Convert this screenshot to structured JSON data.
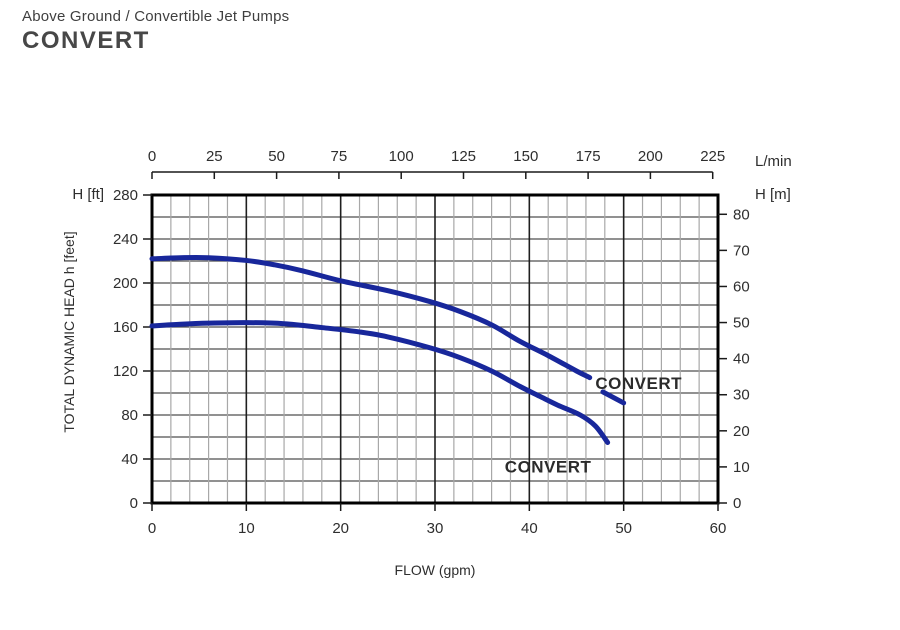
{
  "header": {
    "category": "Above Ground / Convertible Jet Pumps",
    "model": "CONVERT"
  },
  "chart_data": {
    "type": "line",
    "title": "",
    "x_axis_bottom": {
      "label": "FLOW (gpm)",
      "ticks": [
        0,
        10,
        20,
        30,
        40,
        50,
        60
      ],
      "range": [
        0,
        60
      ],
      "minor_step_gpm": 2,
      "major_step_gpm": 10
    },
    "x_axis_top": {
      "label": "L/min",
      "ticks": [
        0,
        25,
        50,
        75,
        100,
        125,
        150,
        175,
        200,
        225
      ],
      "range_lmin": [
        0,
        225
      ]
    },
    "y_axis_left": {
      "unit_label": "H [ft]",
      "axis_title": "TOTAL DYNAMIC HEAD h [feet]",
      "ticks": [
        0,
        40,
        80,
        120,
        160,
        200,
        240,
        280
      ],
      "range": [
        0,
        280
      ],
      "grid_step_ft": 20
    },
    "y_axis_right": {
      "unit_label": "H [m]",
      "ticks": [
        0,
        10,
        20,
        30,
        40,
        50,
        60,
        70,
        80
      ]
    },
    "grid": {
      "on": true,
      "minor_vertical_color": "#a8a8a8",
      "major_vertical_color": "#1f1f1f",
      "horizontal_color": "#4f4f4f",
      "border_color": "#000000",
      "tick_color": "#1a1a1a"
    },
    "text_color": "#2e2e2e",
    "legend_position": "labels-on-plot",
    "series": [
      {
        "name": "CONVERT high-pressure curve",
        "label": {
          "text": "CONVERT",
          "x_gpm": 47.0,
          "y_ft": 109
        },
        "color": "#18279b",
        "segments_gpm_ft": [
          [
            [
              0,
              222
            ],
            [
              3,
              223
            ],
            [
              6,
              223
            ],
            [
              10,
              220.5
            ],
            [
              13,
              216.5
            ],
            [
              16,
              211
            ],
            [
              20,
              202
            ],
            [
              25,
              193
            ],
            [
              29.5,
              183
            ],
            [
              32.7,
              174
            ],
            [
              36,
              162
            ],
            [
              39,
              147
            ],
            [
              42,
              134
            ],
            [
              45,
              120
            ],
            [
              46.4,
              114
            ]
          ],
          [
            [
              47.8,
              101
            ],
            [
              50,
              91
            ]
          ]
        ]
      },
      {
        "name": "CONVERT high-flow curve",
        "label": {
          "text": "CONVERT",
          "x_gpm": 37.4,
          "y_ft": 33
        },
        "color": "#18279b",
        "segments_gpm_ft": [
          [
            [
              0,
              161
            ],
            [
              3,
              162.5
            ],
            [
              6,
              163.5
            ],
            [
              10,
              164
            ],
            [
              14,
              163
            ],
            [
              18,
              159.5
            ],
            [
              22,
              155.5
            ],
            [
              25,
              151
            ],
            [
              29.5,
              141
            ],
            [
              32.7,
              132
            ],
            [
              36,
              120
            ],
            [
              39,
              106
            ],
            [
              41.1,
              97
            ],
            [
              43,
              89
            ],
            [
              45.4,
              80
            ],
            [
              47,
              70
            ],
            [
              48.3,
              55
            ]
          ]
        ]
      }
    ]
  }
}
